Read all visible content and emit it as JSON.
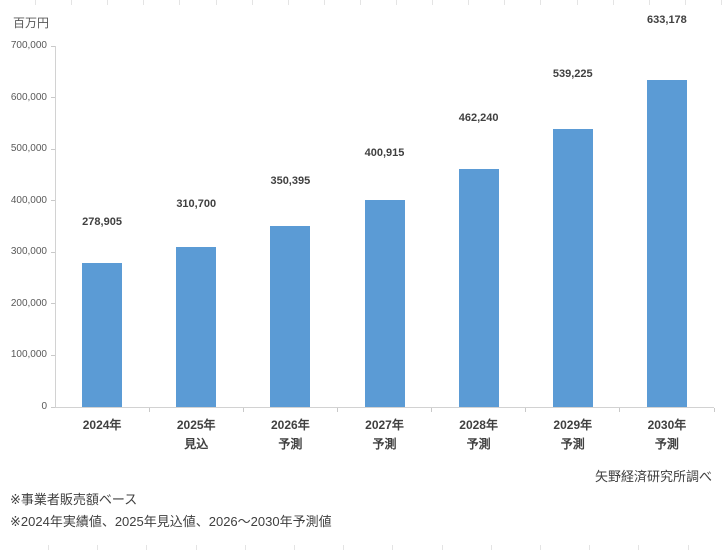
{
  "chart": {
    "unit_label": "百万円",
    "source_label": "矢野経済研究所調べ",
    "notes": [
      "※事業者販売額ベース",
      "※2024年実績値、2025年見込値、2026～2030年予測値"
    ]
  },
  "chart_data": {
    "type": "bar",
    "title": "",
    "xlabel": "",
    "ylabel": "百万円",
    "categories": [
      "2024年",
      "2025年",
      "2026年",
      "2027年",
      "2028年",
      "2029年",
      "2030年"
    ],
    "category_sublabels": [
      "",
      "見込",
      "予測",
      "予測",
      "予測",
      "予測",
      "予測"
    ],
    "values": [
      278905,
      310700,
      350395,
      400915,
      462240,
      539225,
      633178
    ],
    "value_labels": [
      "278,905",
      "310,700",
      "350,395",
      "400,915",
      "462,240",
      "539,225",
      "633,178"
    ],
    "ylim": [
      0,
      700000
    ],
    "ytick_step": 100000,
    "grid": false,
    "legend": "none",
    "bar_color": "#5b9bd5",
    "axis_color": "#d2d2d2",
    "label_color": "#404040",
    "tick_label_color": "#595959"
  }
}
